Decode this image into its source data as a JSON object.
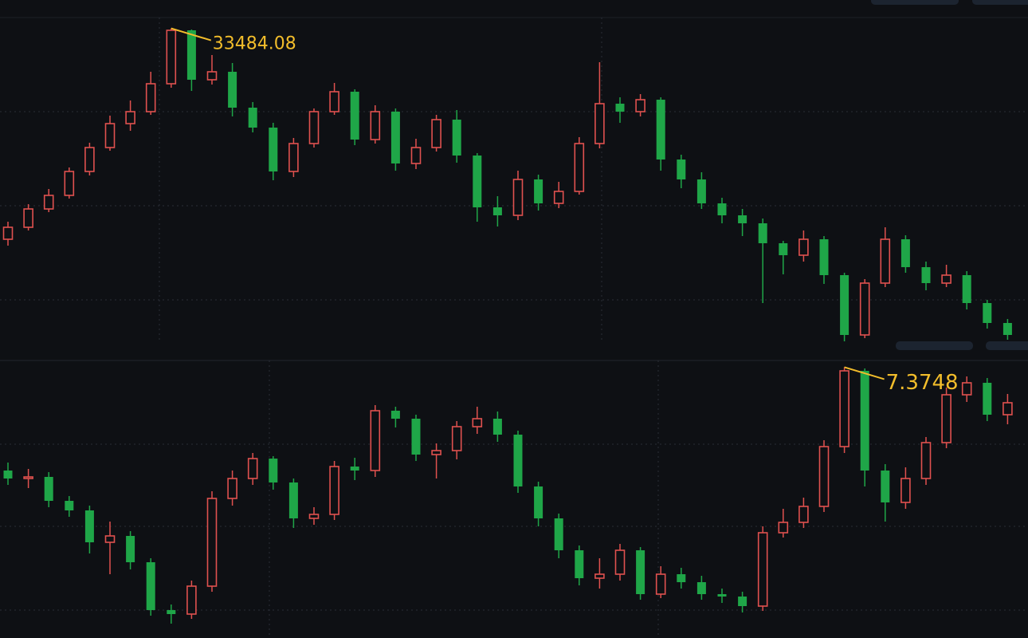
{
  "chart_data": [
    {
      "type": "candlestick",
      "up_color": "#e0514f",
      "down_color": "#1fa648",
      "label_color": "#f2bd2b",
      "peak_label": "33484.08",
      "ylim": [
        29540,
        33740
      ],
      "open": [
        30840,
        30990,
        31220,
        31390,
        31690,
        31990,
        32290,
        32440,
        32790,
        33460,
        32840,
        32940,
        32490,
        32240,
        31690,
        32040,
        32440,
        32690,
        32090,
        32440,
        31790,
        31990,
        32340,
        31890,
        31240,
        31140,
        31590,
        31290,
        31440,
        32040,
        32540,
        32440,
        32590,
        31840,
        31590,
        31290,
        31140,
        31040,
        30790,
        30640,
        30840,
        30390,
        29640,
        30290,
        30840,
        30490,
        30290,
        30390,
        30040,
        29790
      ],
      "close": [
        30990,
        31220,
        31390,
        31690,
        31990,
        32290,
        32440,
        32790,
        33460,
        32840,
        32940,
        32490,
        32240,
        31690,
        32040,
        32440,
        32690,
        32090,
        32440,
        31790,
        31990,
        32340,
        31890,
        31240,
        31140,
        31590,
        31290,
        31440,
        32040,
        32540,
        32440,
        32590,
        31840,
        31590,
        31290,
        31140,
        31040,
        30790,
        30640,
        30840,
        30390,
        29640,
        30290,
        30840,
        30490,
        30290,
        30390,
        30040,
        29790,
        29640
      ],
      "high": [
        31060,
        31280,
        31470,
        31740,
        32050,
        32390,
        32580,
        32940,
        33484.08,
        33470,
        33150,
        33050,
        32560,
        32300,
        32110,
        32480,
        32800,
        32720,
        32520,
        32480,
        32100,
        32400,
        32460,
        31920,
        31380,
        31700,
        31650,
        31560,
        32120,
        33060,
        32620,
        32660,
        32620,
        31900,
        31680,
        31360,
        31220,
        31100,
        30820,
        30950,
        30880,
        30420,
        30340,
        30990,
        30890,
        30560,
        30520,
        30440,
        30080,
        29840
      ],
      "low": [
        30760,
        30950,
        31180,
        31350,
        31640,
        31950,
        32200,
        32400,
        32740,
        32700,
        32780,
        32380,
        32180,
        31580,
        31620,
        31990,
        32400,
        32020,
        32040,
        31700,
        31720,
        31940,
        31800,
        31060,
        31000,
        31080,
        31200,
        31230,
        31400,
        31980,
        32300,
        32380,
        31700,
        31480,
        31220,
        31040,
        30880,
        30040,
        30400,
        30560,
        30280,
        29560,
        29600,
        30240,
        30420,
        30200,
        30240,
        29960,
        29720,
        29580
      ]
    },
    {
      "type": "candlestick",
      "up_color": "#e0514f",
      "down_color": "#1fa648",
      "label_color": "#f2bd2b",
      "peak_label": "7.3748",
      "ylim": [
        7.21,
        7.38
      ],
      "open": [
        7.31,
        7.305,
        7.306,
        7.291,
        7.285,
        7.265,
        7.269,
        7.2525,
        7.2225,
        7.22,
        7.2375,
        7.2925,
        7.305,
        7.3175,
        7.3025,
        7.28,
        7.2825,
        7.3125,
        7.31,
        7.3475,
        7.3425,
        7.32,
        7.3225,
        7.3375,
        7.3425,
        7.3325,
        7.3,
        7.28,
        7.26,
        7.2425,
        7.245,
        7.26,
        7.2325,
        7.245,
        7.24,
        7.2325,
        7.231,
        7.225,
        7.271,
        7.2775,
        7.2875,
        7.325,
        7.3725,
        7.31,
        7.29,
        7.305,
        7.3275,
        7.3575,
        7.365,
        7.345
      ],
      "close": [
        7.305,
        7.306,
        7.291,
        7.285,
        7.265,
        7.269,
        7.2525,
        7.2225,
        7.22,
        7.2375,
        7.2925,
        7.305,
        7.3175,
        7.3025,
        7.28,
        7.2825,
        7.3125,
        7.31,
        7.3475,
        7.3425,
        7.32,
        7.3225,
        7.3375,
        7.3425,
        7.3325,
        7.3,
        7.28,
        7.26,
        7.2425,
        7.245,
        7.26,
        7.2325,
        7.245,
        7.24,
        7.2325,
        7.231,
        7.225,
        7.271,
        7.2775,
        7.2875,
        7.325,
        7.3725,
        7.31,
        7.29,
        7.305,
        7.3275,
        7.3575,
        7.365,
        7.345,
        7.3525
      ],
      "high": [
        7.315,
        7.311,
        7.309,
        7.294,
        7.288,
        7.278,
        7.272,
        7.255,
        7.226,
        7.241,
        7.297,
        7.31,
        7.321,
        7.319,
        7.305,
        7.287,
        7.316,
        7.318,
        7.351,
        7.35,
        7.345,
        7.327,
        7.341,
        7.35,
        7.347,
        7.335,
        7.303,
        7.283,
        7.263,
        7.255,
        7.264,
        7.262,
        7.25,
        7.249,
        7.244,
        7.236,
        7.234,
        7.275,
        7.286,
        7.293,
        7.329,
        7.3748,
        7.374,
        7.314,
        7.312,
        7.331,
        7.362,
        7.369,
        7.368,
        7.358
      ],
      "low": [
        7.301,
        7.299,
        7.287,
        7.281,
        7.258,
        7.245,
        7.248,
        7.219,
        7.214,
        7.217,
        7.234,
        7.288,
        7.301,
        7.298,
        7.274,
        7.276,
        7.279,
        7.304,
        7.306,
        7.337,
        7.316,
        7.305,
        7.317,
        7.333,
        7.328,
        7.296,
        7.275,
        7.255,
        7.238,
        7.236,
        7.241,
        7.229,
        7.23,
        7.236,
        7.229,
        7.227,
        7.221,
        7.222,
        7.268,
        7.274,
        7.284,
        7.321,
        7.3,
        7.278,
        7.286,
        7.301,
        7.324,
        7.353,
        7.341,
        7.339
      ]
    }
  ]
}
